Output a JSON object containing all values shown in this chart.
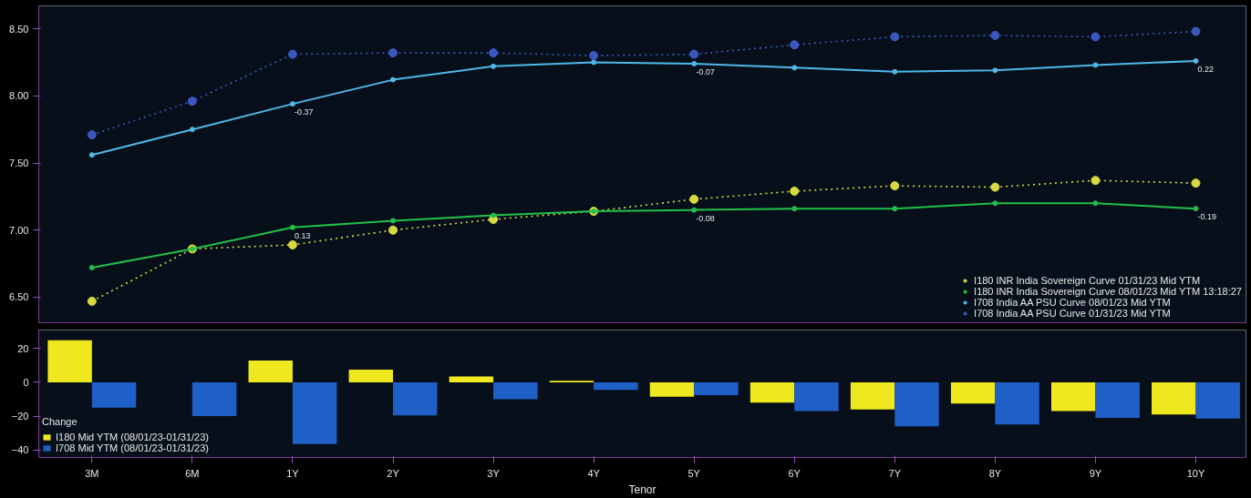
{
  "chart_data": [
    {
      "type": "line",
      "categories": [
        "3M",
        "6M",
        "1Y",
        "2Y",
        "3Y",
        "4Y",
        "5Y",
        "6Y",
        "7Y",
        "8Y",
        "9Y",
        "10Y"
      ],
      "ylim": [
        6.31,
        8.67
      ],
      "yticks": [
        {
          "value": 6.5,
          "label": "6.50"
        },
        {
          "value": 7.0,
          "label": "7.00"
        },
        {
          "value": 7.5,
          "label": "7.50"
        },
        {
          "value": 8.0,
          "label": "8.00"
        },
        {
          "value": 8.5,
          "label": "8.50"
        }
      ],
      "tick_labels": "y",
      "legend": "bottom right",
      "marker": "circle",
      "grid": false,
      "series": [
        {
          "name": "I180 INR India Sovereign Curve 01/31/23 Mid YTM",
          "color": "#d8d840",
          "line_style": "dotted",
          "values": [
            6.47,
            6.86,
            6.89,
            7.0,
            7.08,
            7.14,
            7.23,
            7.29,
            7.33,
            7.32,
            7.37,
            7.35
          ]
        },
        {
          "name": "I180 INR India Sovereign Curve 08/01/23 Mid YTM 13:18:27",
          "color": "#22c04a",
          "line_style": "solid",
          "values": [
            6.72,
            6.86,
            7.02,
            7.07,
            7.11,
            7.14,
            7.15,
            7.16,
            7.16,
            7.2,
            7.2,
            7.16
          ]
        },
        {
          "name": "I708 India AA PSU Curve 08/01/23 Mid YTM",
          "color": "#4fb8e8",
          "line_style": "solid",
          "values": [
            7.56,
            7.75,
            7.94,
            8.12,
            8.22,
            8.25,
            8.24,
            8.21,
            8.18,
            8.19,
            8.23,
            8.26
          ]
        },
        {
          "name": "I708 India AA PSU Curve 01/31/23 Mid YTM",
          "color": "#3a58c0",
          "line_style": "dotted",
          "values": [
            7.71,
            7.96,
            8.31,
            8.32,
            8.32,
            8.3,
            8.31,
            8.38,
            8.44,
            8.45,
            8.44,
            8.48
          ]
        }
      ],
      "annotations": [
        {
          "text": "-0.37",
          "x": "1Y",
          "y": 7.94
        },
        {
          "text": "0.13",
          "x": "1Y",
          "y": 7.02
        },
        {
          "text": "-0.07",
          "x": "5Y",
          "y": 8.24
        },
        {
          "text": "-0.08",
          "x": "5Y",
          "y": 7.15
        },
        {
          "text": "0.22",
          "x": "10Y",
          "y": 8.26
        },
        {
          "text": "-0.19",
          "x": "10Y",
          "y": 7.16
        }
      ]
    },
    {
      "type": "bar",
      "categories": [
        "3M",
        "6M",
        "1Y",
        "2Y",
        "3Y",
        "4Y",
        "5Y",
        "6Y",
        "7Y",
        "8Y",
        "9Y",
        "10Y"
      ],
      "xlabel": "Tenor",
      "ylim": [
        -44.5,
        31
      ],
      "yticks": [
        -40,
        -20,
        0,
        20
      ],
      "legend": "bottom left",
      "legend_title": "Change",
      "grid": false,
      "series": [
        {
          "name": "I180 Mid YTM (08/01/23-01/31/23)",
          "color": "#f0e81e",
          "values": [
            25,
            0,
            13,
            7.5,
            3.5,
            1,
            -8.5,
            -12,
            -16,
            -12.5,
            -17,
            -19
          ]
        },
        {
          "name": "I708 Mid YTM (08/01/23-01/31/23)",
          "color": "#1f5fc8",
          "values": [
            -15,
            -20,
            -36.5,
            -19.5,
            -10,
            -4.5,
            -7.5,
            -17,
            -26,
            -25,
            -21,
            -21.5
          ]
        }
      ]
    }
  ]
}
